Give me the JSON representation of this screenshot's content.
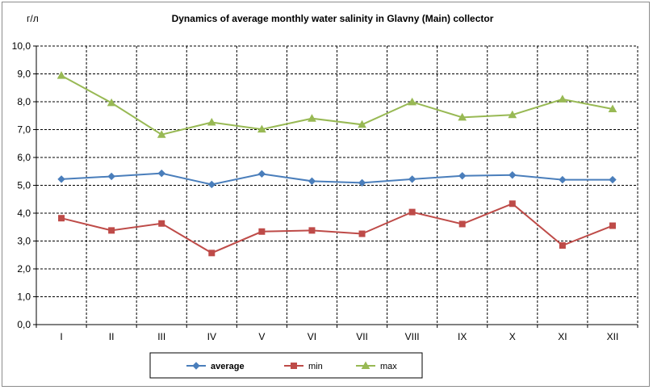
{
  "chart_data": {
    "type": "line",
    "title": "Dynamics of average monthly water salinity in Glavny (Main) collector",
    "ylabel": "г/л",
    "xlabel": "",
    "categories": [
      "I",
      "II",
      "III",
      "IV",
      "V",
      "VI",
      "VII",
      "VIII",
      "IX",
      "X",
      "XI",
      "XII"
    ],
    "ylim": [
      0,
      10
    ],
    "yticks": [
      "0,0",
      "1,0",
      "2,0",
      "3,0",
      "4,0",
      "5,0",
      "6,0",
      "7,0",
      "8,0",
      "9,0",
      "10,0"
    ],
    "grid": true,
    "legend_position": "bottom",
    "series": [
      {
        "name": "average",
        "color": "#4a7ebb",
        "marker": "diamond",
        "values": [
          5.22,
          5.32,
          5.43,
          5.03,
          5.41,
          5.15,
          5.09,
          5.22,
          5.34,
          5.37,
          5.2,
          5.2
        ]
      },
      {
        "name": "min",
        "color": "#be4b48",
        "marker": "square",
        "values": [
          3.82,
          3.38,
          3.63,
          2.57,
          3.34,
          3.38,
          3.26,
          4.04,
          3.61,
          4.34,
          2.84,
          3.55
        ]
      },
      {
        "name": "max",
        "color": "#98b954",
        "marker": "triangle",
        "values": [
          8.94,
          7.96,
          6.82,
          7.26,
          7.01,
          7.4,
          7.18,
          7.99,
          7.44,
          7.53,
          8.09,
          7.74
        ]
      }
    ]
  }
}
